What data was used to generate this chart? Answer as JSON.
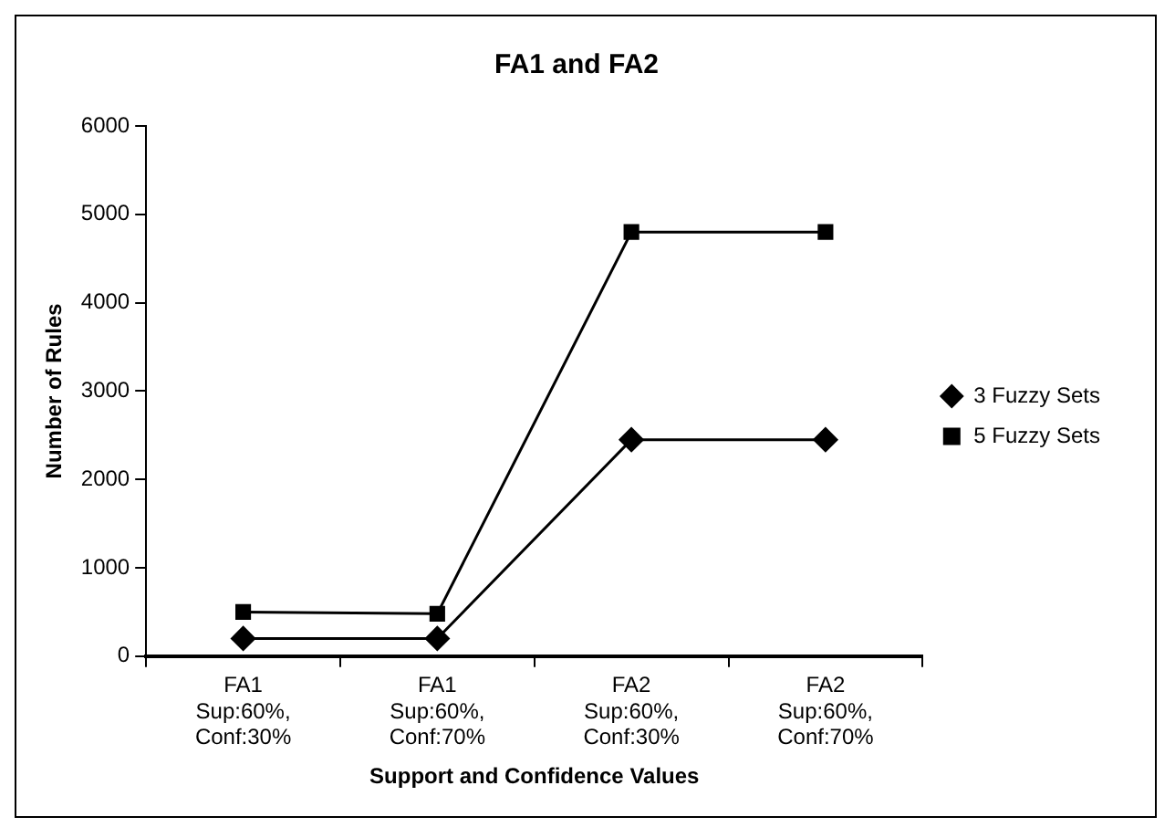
{
  "chart_data": {
    "type": "line",
    "title": "FA1 and FA2",
    "xlabel": "Support and Confidence Values",
    "ylabel": "Number of Rules",
    "categories": [
      "FA1\nSup:60%,\nConf:30%",
      "FA1\nSup:60%,\nConf:70%",
      "FA2\nSup:60%,\nConf:30%",
      "FA2\nSup:60%,\nConf:70%"
    ],
    "series": [
      {
        "name": "3 Fuzzy Sets",
        "color": "#000000",
        "marker": "diamond",
        "values": [
          200,
          200,
          2450,
          2450
        ]
      },
      {
        "name": "5 Fuzzy Sets",
        "color": "#000000",
        "marker": "square",
        "values": [
          500,
          480,
          4800,
          4800
        ]
      }
    ],
    "ylim": [
      0,
      6000
    ],
    "yticks": [
      0,
      1000,
      2000,
      3000,
      4000,
      5000,
      6000
    ],
    "grid": false,
    "legend": "right"
  }
}
